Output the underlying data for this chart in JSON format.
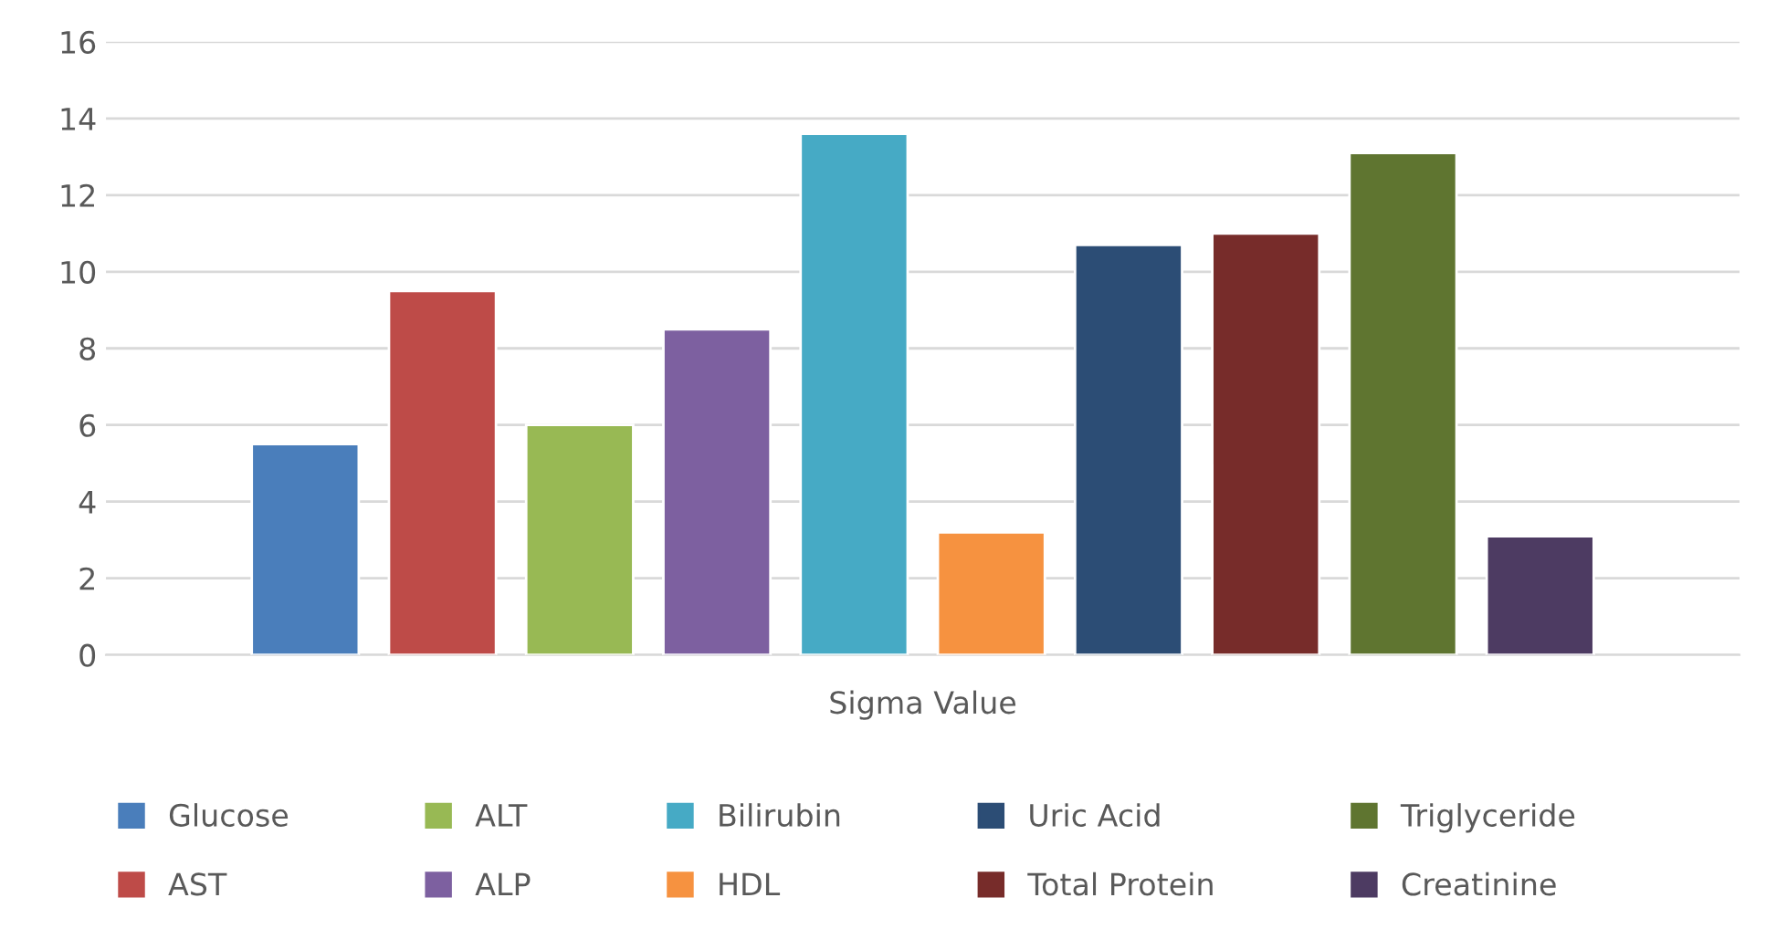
{
  "chart_data": {
    "type": "bar",
    "categories": [
      "Sigma Value"
    ],
    "series": [
      {
        "name": "Glucose",
        "color": "#4a7ebb",
        "values": [
          5.5
        ]
      },
      {
        "name": "AST",
        "color": "#be4b48",
        "values": [
          9.5
        ]
      },
      {
        "name": "ALT",
        "color": "#98b954",
        "values": [
          6.0
        ]
      },
      {
        "name": "ALP",
        "color": "#7d60a0",
        "values": [
          8.5
        ]
      },
      {
        "name": "Bilirubin",
        "color": "#46aac5",
        "values": [
          13.6
        ]
      },
      {
        "name": "HDL",
        "color": "#f69240",
        "values": [
          3.2
        ]
      },
      {
        "name": "Uric Acid",
        "color": "#2c4d75",
        "values": [
          10.7
        ]
      },
      {
        "name": "Total Protein",
        "color": "#772c2a",
        "values": [
          11.0
        ]
      },
      {
        "name": "Triglyceride",
        "color": "#5f7530",
        "values": [
          13.1
        ]
      },
      {
        "name": "Creatinine",
        "color": "#4d3b62",
        "values": [
          3.1
        ]
      }
    ],
    "ylim": [
      0,
      16
    ],
    "yticks": [
      0,
      2,
      4,
      6,
      8,
      10,
      12,
      14,
      16
    ],
    "grid": "y",
    "legend": "bottom"
  }
}
